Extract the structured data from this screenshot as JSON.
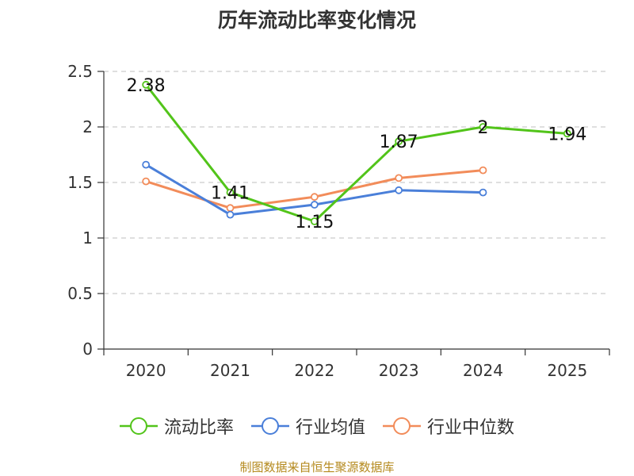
{
  "chart_data": {
    "type": "line",
    "title": "历年流动比率变化情况",
    "categories": [
      "2020",
      "2021",
      "2022",
      "2023",
      "2024",
      "2025"
    ],
    "ylim": [
      0,
      2.5
    ],
    "yticks": [
      "0",
      "0.5",
      "1",
      "1.5",
      "2",
      "2.5"
    ],
    "ytick_values": [
      0,
      0.5,
      1,
      1.5,
      2,
      2.5
    ],
    "grid": true,
    "legend_position": "bottom",
    "series": [
      {
        "name": "流动比率",
        "color": "#52c41a",
        "values": [
          2.38,
          1.41,
          1.15,
          1.87,
          2,
          1.94
        ],
        "labels": [
          "2.38",
          "1.41",
          "1.15",
          "1.87",
          "2",
          "1.94"
        ]
      },
      {
        "name": "行业均值",
        "color": "#4a7fd9",
        "values": [
          1.66,
          1.21,
          1.3,
          1.43,
          1.41,
          null
        ]
      },
      {
        "name": "行业中位数",
        "color": "#f28c5a",
        "values": [
          1.51,
          1.27,
          1.37,
          1.54,
          1.61,
          null
        ]
      }
    ]
  },
  "source": "制图数据来自恒生聚源数据库"
}
